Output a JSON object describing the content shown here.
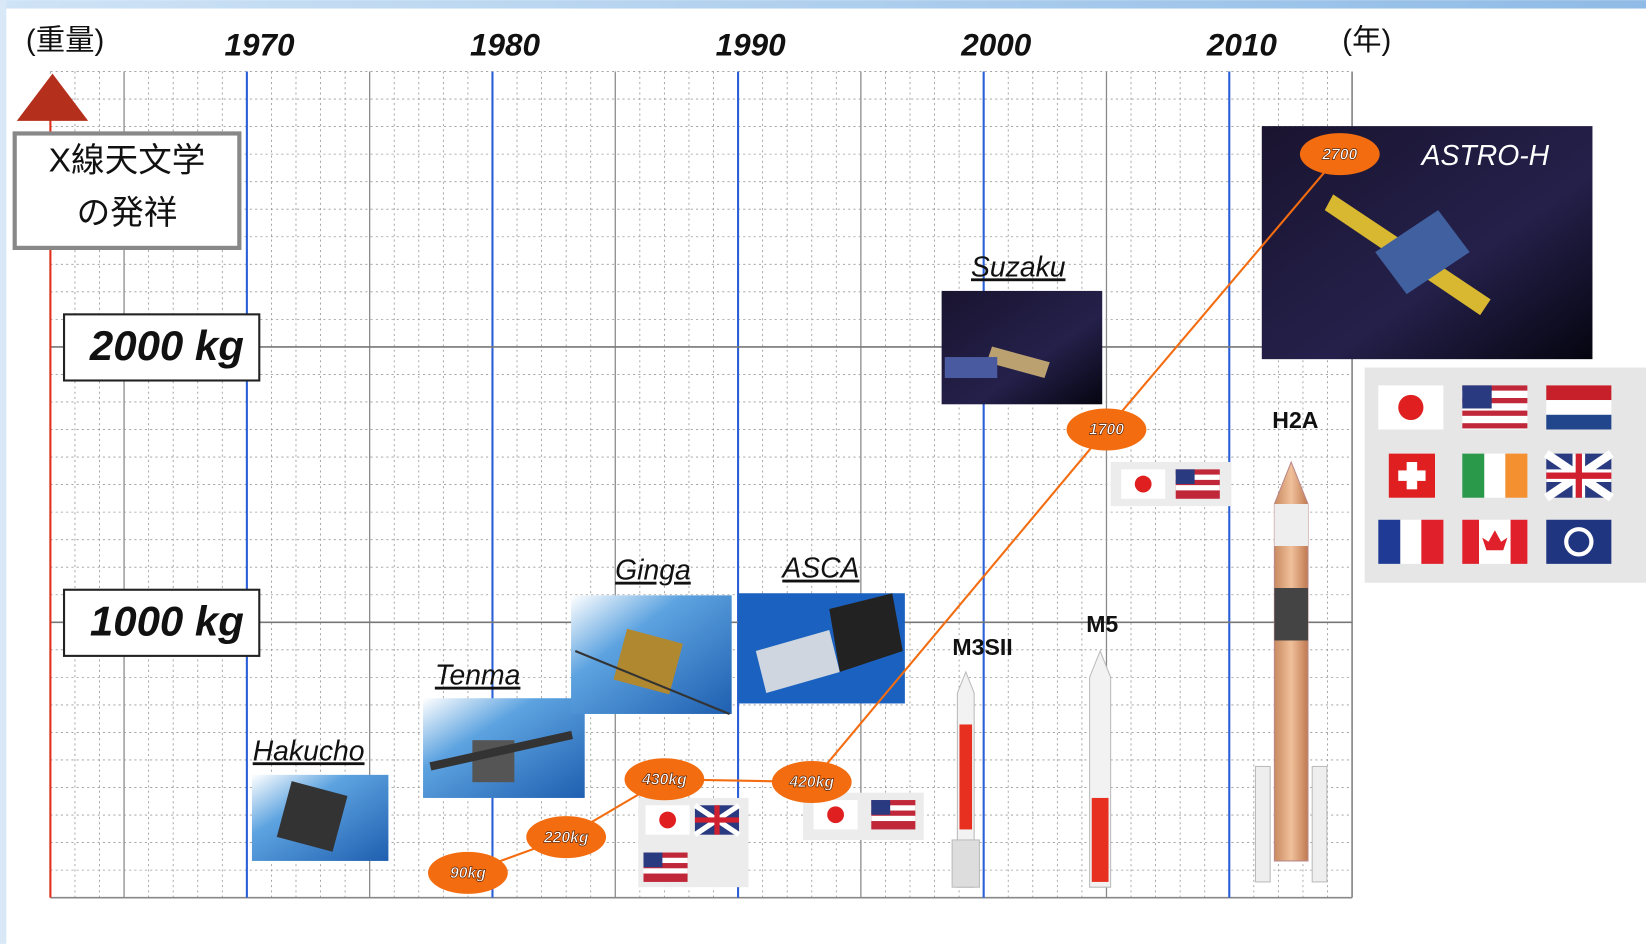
{
  "chart_data": {
    "type": "line",
    "ylabel": "(重量)",
    "xlabel": "(年)",
    "origin_note": [
      "X線天文学",
      "の発祥"
    ],
    "x": [
      1979,
      1983,
      1987,
      1993,
      2005,
      2014.5
    ],
    "values": [
      90,
      220,
      430,
      420,
      1700,
      2700
    ],
    "value_labels": [
      "90kg",
      "220kg",
      "430kg",
      "420kg",
      "1700",
      "2700"
    ],
    "point_names": [
      "Hakucho",
      "Tenma",
      "Ginga",
      "ASCA",
      "Suzaku",
      "ASTRO-H"
    ],
    "rockets": [
      "M3SII",
      "M5",
      "H2A"
    ],
    "color": "#f36c10",
    "xlim": [
      1962,
      2015
    ],
    "xticks": [
      1970,
      1980,
      1990,
      2000,
      2010
    ],
    "ylim": [
      0,
      3000
    ],
    "yticks": [
      {
        "value": 1000,
        "label": "1000 kg"
      },
      {
        "value": 2000,
        "label": "2000 kg"
      }
    ],
    "grid": true
  }
}
